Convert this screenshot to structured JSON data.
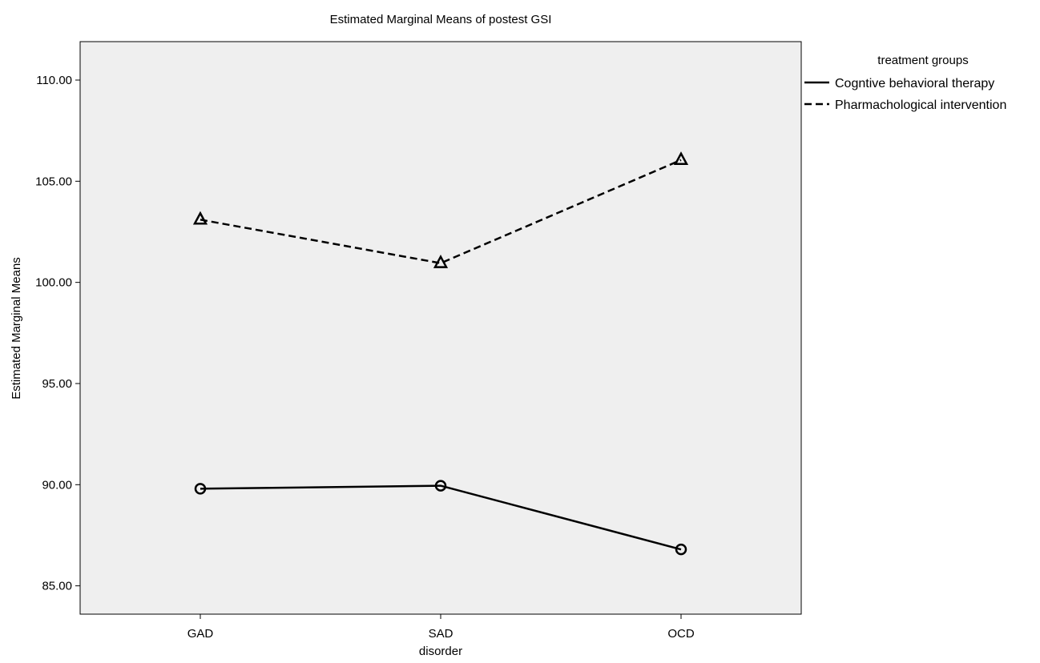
{
  "chart_data": {
    "type": "line",
    "title": "Estimated Marginal Means of postest GSI",
    "xlabel": "disorder",
    "ylabel": "Estimated Marginal Means",
    "categories": [
      "GAD",
      "SAD",
      "OCD"
    ],
    "ylim": [
      83.6,
      111.9
    ],
    "yticks": [
      85,
      90,
      95,
      100,
      105,
      110
    ],
    "ytick_labels": [
      "85.00",
      "90.00",
      "95.00",
      "100.00",
      "105.00",
      "110.00"
    ],
    "legend": {
      "title": "treatment groups",
      "placement": "right"
    },
    "grid": false,
    "plot_background": "#efefef",
    "series": [
      {
        "name": "Cogntive behavioral therapy",
        "values": [
          89.8,
          89.95,
          86.8
        ],
        "line_style": "solid",
        "marker": "circle",
        "color": "#000000"
      },
      {
        "name": "Pharmachological intervention",
        "values": [
          103.1,
          100.95,
          106.05
        ],
        "line_style": "dashed",
        "marker": "triangle",
        "color": "#000000"
      }
    ]
  }
}
